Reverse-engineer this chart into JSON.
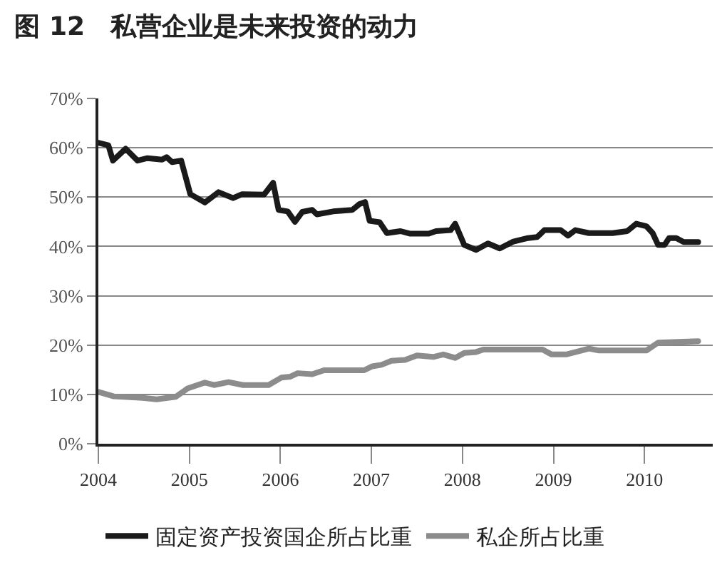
{
  "chart_data": {
    "type": "line",
    "title": "图 12　私营企业是未来投资的动力",
    "xlim": [
      2004,
      2010.75
    ],
    "xticks": [
      2004,
      2005,
      2006,
      2007,
      2008,
      2009,
      2010
    ],
    "ylim": [
      0,
      70
    ],
    "yticks": [
      {
        "value": 0,
        "label": "0%"
      },
      {
        "value": 10,
        "label": "10%"
      },
      {
        "value": 20,
        "label": "20%"
      },
      {
        "value": 30,
        "label": "30%"
      },
      {
        "value": 40,
        "label": "40%"
      },
      {
        "value": 50,
        "label": "50%"
      },
      {
        "value": 60,
        "label": "60%"
      },
      {
        "value": 70,
        "label": "70%"
      }
    ],
    "grid": "y",
    "legend": "bottom",
    "marker": "none",
    "line_style": "solid",
    "series": [
      {
        "name": "固定资产投资国企所占比重",
        "color": "#1a1a1a",
        "x": [
          2004.0,
          2004.11,
          2004.16,
          2004.3,
          2004.43,
          2004.54,
          2004.7,
          2004.75,
          2004.81,
          2004.91,
          2005.01,
          2005.17,
          2005.32,
          2005.48,
          2005.58,
          2005.82,
          2005.92,
          2005.98,
          2006.08,
          2006.16,
          2006.24,
          2006.35,
          2006.4,
          2006.58,
          2006.79,
          2006.87,
          2006.93,
          2006.98,
          2007.09,
          2007.17,
          2007.32,
          2007.42,
          2007.63,
          2007.71,
          2007.87,
          2007.92,
          2008.02,
          2008.15,
          2008.28,
          2008.41,
          2008.56,
          2008.72,
          2008.82,
          2008.9,
          2009.08,
          2009.16,
          2009.24,
          2009.39,
          2009.65,
          2009.81,
          2009.91,
          2010.02,
          2010.09,
          2010.15,
          2010.22,
          2010.27,
          2010.35,
          2010.43,
          2010.59
        ],
        "values": [
          61,
          60.5,
          57.4,
          59.8,
          57.4,
          57.9,
          57.6,
          58.1,
          57.1,
          57.4,
          50.6,
          48.9,
          51,
          49.8,
          50.6,
          50.5,
          52.9,
          47.4,
          47.1,
          45,
          47,
          47.4,
          46.5,
          47.1,
          47.4,
          48.6,
          49.0,
          45.2,
          44.9,
          42.7,
          43.1,
          42.6,
          42.6,
          43.1,
          43.3,
          44.6,
          40.3,
          39.3,
          40.6,
          39.6,
          41.0,
          41.7,
          41.9,
          43.3,
          43.3,
          42.2,
          43.3,
          42.7,
          42.7,
          43.1,
          44.6,
          44.1,
          42.7,
          40.3,
          40.3,
          41.7,
          41.7,
          40.9,
          40.9
        ]
      },
      {
        "name": "私企所占比重",
        "color": "#8c8c8c",
        "x": [
          2004.0,
          2004.17,
          2004.49,
          2004.64,
          2004.85,
          2004.98,
          2005.17,
          2005.27,
          2005.43,
          2005.59,
          2005.87,
          2006.01,
          2006.11,
          2006.19,
          2006.35,
          2006.48,
          2006.92,
          2007.01,
          2007.11,
          2007.22,
          2007.37,
          2007.5,
          2007.68,
          2007.79,
          2007.92,
          2008.02,
          2008.15,
          2008.23,
          2008.88,
          2008.98,
          2009.14,
          2009.39,
          2009.5,
          2010.02,
          2010.15,
          2010.59
        ],
        "values": [
          10.5,
          9.6,
          9.3,
          9.0,
          9.5,
          11.2,
          12.4,
          11.9,
          12.5,
          11.9,
          11.9,
          13.4,
          13.6,
          14.3,
          14.1,
          14.9,
          14.9,
          15.7,
          16.0,
          16.8,
          17.0,
          17.9,
          17.6,
          18.1,
          17.4,
          18.4,
          18.6,
          19.1,
          19.1,
          18.1,
          18.1,
          19.3,
          18.9,
          18.9,
          20.5,
          20.8
        ]
      }
    ]
  }
}
